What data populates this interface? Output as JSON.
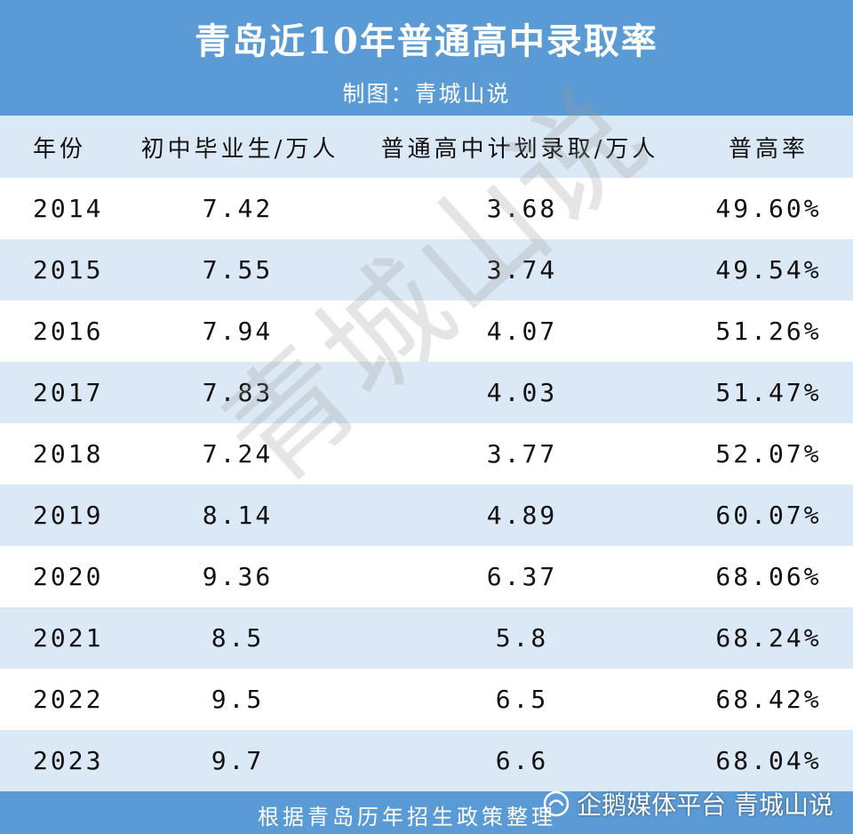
{
  "chart_data": {
    "type": "table",
    "title": "青岛近10年普通高中录取率",
    "subtitle": "制图：青城山说",
    "columns": [
      "年份",
      "初中毕业生/万人",
      "普通高中计划录取/万人",
      "普高率"
    ],
    "rows": [
      [
        "2014",
        "7.42",
        "3.68",
        "49.60%"
      ],
      [
        "2015",
        "7.55",
        "3.74",
        "49.54%"
      ],
      [
        "2016",
        "7.94",
        "4.07",
        "51.26%"
      ],
      [
        "2017",
        "7.83",
        "4.03",
        "51.47%"
      ],
      [
        "2018",
        "7.24",
        "3.77",
        "52.07%"
      ],
      [
        "2019",
        "8.14",
        "4.89",
        "60.07%"
      ],
      [
        "2020",
        "9.36",
        "6.37",
        "68.06%"
      ],
      [
        "2021",
        "8.5",
        "5.8",
        "68.24%"
      ],
      [
        "2022",
        "9.5",
        "6.5",
        "68.42%"
      ],
      [
        "2023",
        "9.7",
        "6.6",
        "68.04%"
      ]
    ],
    "footer": "根据青岛历年招生政策整理",
    "watermark": "青城山说",
    "colors": {
      "header": "#5b9bd5",
      "stripe": "#dbe8f5"
    }
  },
  "brand": {
    "icon": "penguin-logo-icon",
    "text": "企鹅媒体平台 青城山说"
  }
}
